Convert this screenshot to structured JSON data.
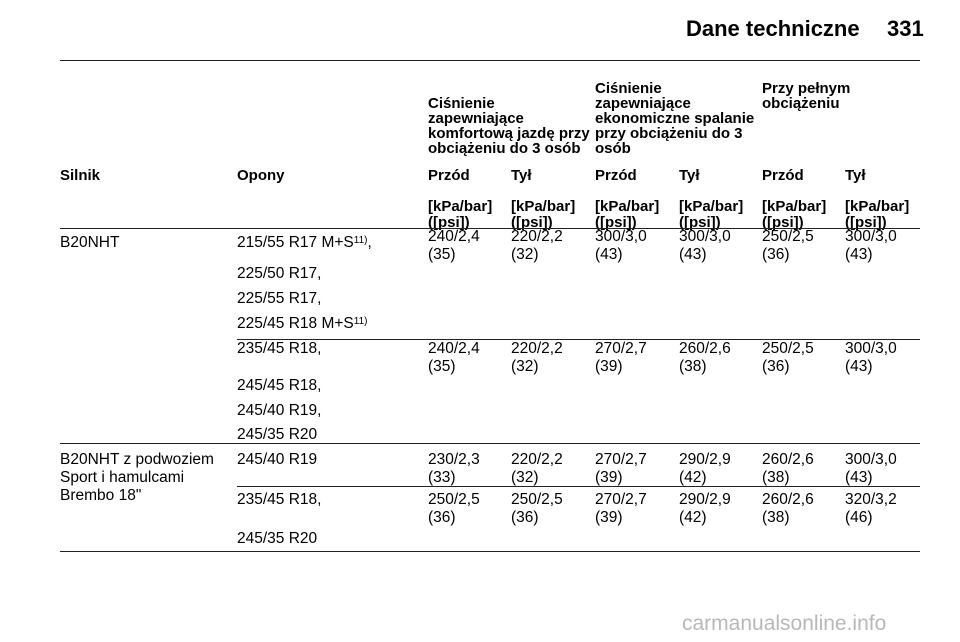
{
  "header": {
    "title": "Dane techniczne",
    "page_number": "331"
  },
  "group_headers": [
    "Ciśnienie zapewniające komfortową jazdę przy obciążeniu do 3 osób",
    "Ciśnienie zapewniające ekonomiczne spalanie przy obciążeniu do 3 osób",
    "Przy pełnym obciążeniu"
  ],
  "column_headers": {
    "engine": "Silnik",
    "tyres": "Opony",
    "front1": "Przód",
    "rear1": "Tył",
    "front2": "Przód",
    "rear2": "Tył",
    "front3": "Przód",
    "rear3": "Tył"
  },
  "unit_label": "[kPa/bar]\n([psi])",
  "footnote_mark": "11)",
  "rows": [
    {
      "engine": "B20NHT",
      "tyres": [
        "215/55 R17 M+S",
        "225/50 R17,",
        "225/55 R17,",
        "225/45 R18 M+S"
      ],
      "values": [
        "240/2,4\n(35)",
        "220/2,2\n(32)",
        "300/3,0\n(43)",
        "300/3,0\n(43)",
        "250/2,5\n(36)",
        "300/3,0\n(43)"
      ]
    },
    {
      "engine": "",
      "tyres": [
        "235/45 R18,",
        "245/45 R18,",
        "245/40 R19,",
        "245/35 R20"
      ],
      "values": [
        "240/2,4\n(35)",
        "220/2,2\n(32)",
        "270/2,7\n(39)",
        "260/2,6\n(38)",
        "250/2,5\n(36)",
        "300/3,0\n(43)"
      ]
    },
    {
      "engine": "B20NHT z podwoziem\nSport i hamulcami\nBrembo 18\"",
      "tyres": [
        "245/40 R19"
      ],
      "values": [
        "230/2,3\n(33)",
        "220/2,2\n(32)",
        "270/2,7\n(39)",
        "290/2,9\n(42)",
        "260/2,6\n(38)",
        "300/3,0\n(43)"
      ]
    },
    {
      "engine": "",
      "tyres": [
        "235/45 R18,",
        "245/35 R20"
      ],
      "values": [
        "250/2,5\n(36)",
        "250/2,5\n(36)",
        "270/2,7\n(39)",
        "290/2,9\n(42)",
        "260/2,6\n(38)",
        "320/3,2\n(46)"
      ]
    }
  ],
  "watermark": "carmanualsonline.info"
}
